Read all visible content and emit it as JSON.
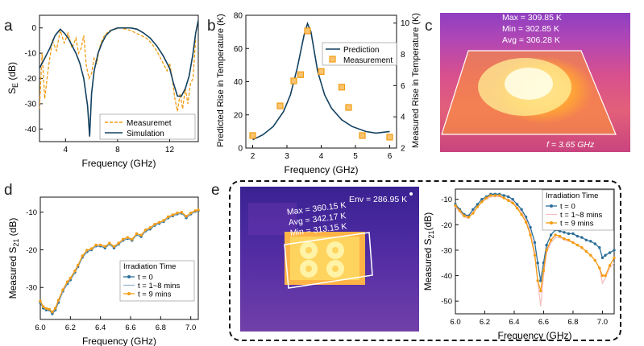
{
  "panels": {
    "a": {
      "letter": "a"
    },
    "b": {
      "letter": "b"
    },
    "c": {
      "letter": "c",
      "max": "Max = 309.85 K",
      "min": "Min = 302.85 K",
      "avg": "Avg = 306.28 K",
      "freq": "f = 3.65 GHz"
    },
    "d": {
      "letter": "d"
    },
    "e": {
      "letter": "e",
      "env": "Env = 286.95 K",
      "max": "Max = 360.15 K",
      "avg": "Avg = 342.17 K",
      "min": "Min = 313.15 K"
    }
  },
  "chart_data": [
    {
      "id": "a",
      "type": "line",
      "xlabel": "Frequency (GHz)",
      "ylabel": "S_E (dB)",
      "xlim": [
        2,
        14.2
      ],
      "ylim": [
        -45,
        5
      ],
      "xticks": [
        4,
        8,
        12
      ],
      "yticks": [
        0,
        -10,
        -20,
        -30,
        -40
      ],
      "legend": "bottom-right",
      "series": [
        {
          "name": "Measuremet",
          "color": "#f39c12",
          "style": "dashed",
          "x": [
            2.0,
            2.2,
            2.4,
            2.7,
            3.0,
            3.3,
            3.6,
            3.9,
            4.2,
            4.5,
            4.8,
            5.0,
            5.2,
            5.4,
            5.6,
            5.8,
            6.0,
            6.2,
            6.4,
            6.6,
            6.8,
            7.0,
            7.4,
            7.8,
            8.2,
            8.6,
            9.0,
            9.4,
            9.8,
            10.2,
            10.6,
            11.0,
            11.4,
            11.8,
            12.0,
            12.2,
            12.4,
            12.6,
            12.8,
            13.0,
            13.2,
            13.4,
            13.6,
            13.8,
            14.0
          ],
          "y": [
            -32,
            -10,
            -28,
            -15,
            -5,
            -9,
            -1,
            -6,
            -2,
            -8,
            -4,
            -10,
            -8,
            -3,
            -15,
            -20,
            -18,
            -12,
            -14,
            -8,
            -5,
            -3,
            -1,
            -0.5,
            0,
            -0.5,
            -1,
            -2,
            -3,
            -4,
            -6,
            -9,
            -13,
            -17,
            -14,
            -20,
            -28,
            -33,
            -26,
            -32,
            -24,
            -30,
            -22,
            -20,
            -4
          ]
        },
        {
          "name": "Simulation",
          "color": "#12405f",
          "style": "solid",
          "x": [
            2.0,
            2.4,
            2.8,
            3.2,
            3.6,
            3.9,
            4.2,
            4.5,
            4.8,
            5.1,
            5.4,
            5.7,
            5.85,
            6.0,
            6.2,
            6.5,
            6.8,
            7.1,
            7.5,
            8.0,
            8.5,
            9.0,
            9.5,
            10.0,
            10.5,
            11.0,
            11.5,
            12.0,
            12.3,
            12.6,
            12.9,
            13.2,
            13.5,
            13.8,
            14.0,
            14.2
          ],
          "y": [
            -16,
            -12,
            -8,
            -3,
            -0.5,
            -2,
            -4,
            -7,
            -10,
            -14,
            -20,
            -31,
            -43,
            -26,
            -17,
            -10,
            -6,
            -3,
            -1,
            0,
            0,
            0,
            -0.5,
            -2,
            -4,
            -7,
            -11,
            -16,
            -22,
            -27,
            -27,
            -24,
            -19,
            -10,
            -2,
            3
          ]
        }
      ]
    },
    {
      "id": "b",
      "type": "line",
      "xlabel": "Frequency (GHz)",
      "ylabel": "Predicted Rise in Temperature (K)",
      "y2label": "Measured Rise in Temperature (K)",
      "xlim": [
        1.8,
        6.2
      ],
      "ylim": [
        0,
        80
      ],
      "y2lim": [
        2,
        10.5
      ],
      "xticks": [
        2,
        3,
        4,
        5,
        6
      ],
      "yticks": [
        0,
        20,
        40,
        60,
        80
      ],
      "y2ticks": [
        2,
        4,
        6,
        8,
        10
      ],
      "legend": "top-right",
      "series": [
        {
          "name": "Prediction",
          "color": "#12405f",
          "axis": "left",
          "x": [
            2.0,
            2.3,
            2.6,
            2.9,
            3.1,
            3.3,
            3.5,
            3.6,
            3.7,
            3.9,
            4.1,
            4.3,
            4.6,
            4.9,
            5.3,
            5.6,
            6.0
          ],
          "y": [
            5,
            8,
            13,
            22,
            32,
            48,
            68,
            75,
            70,
            46,
            32,
            24,
            17,
            13,
            10,
            9,
            10
          ]
        },
        {
          "name": "Measurement",
          "color": "#f39c12",
          "axis": "right",
          "marker": "square",
          "x": [
            2.0,
            2.8,
            3.2,
            3.4,
            3.6,
            4.0,
            4.6,
            4.8,
            5.2,
            6.0
          ],
          "y": [
            2.8,
            4.7,
            6.3,
            6.7,
            9.5,
            6.9,
            5.9,
            4.6,
            2.8,
            2.7
          ]
        }
      ]
    },
    {
      "id": "d",
      "type": "line",
      "xlabel": "Frequency (GHz)",
      "ylabel": "Measured S21 (dB)",
      "xlim": [
        6.0,
        7.05
      ],
      "ylim": [
        -38.5,
        -6
      ],
      "xticks": [
        6.0,
        6.2,
        6.4,
        6.6,
        6.8,
        7.0
      ],
      "yticks": [
        -10,
        -20,
        -30
      ],
      "legend": "bottom-right",
      "legend_title": "Irradiation Time",
      "x": [
        6.0,
        6.02,
        6.04,
        6.06,
        6.08,
        6.1,
        6.12,
        6.15,
        6.18,
        6.2,
        6.23,
        6.25,
        6.28,
        6.31,
        6.34,
        6.37,
        6.4,
        6.43,
        6.46,
        6.49,
        6.52,
        6.55,
        6.58,
        6.61,
        6.64,
        6.67,
        6.7,
        6.73,
        6.76,
        6.79,
        6.82,
        6.85,
        6.88,
        6.91,
        6.94,
        6.97,
        7.0,
        7.03,
        7.05
      ],
      "series": [
        {
          "name": "t = 0",
          "color": "#2d6e99",
          "marker": "dot",
          "y": [
            -34,
            -35.5,
            -36,
            -36,
            -37,
            -36,
            -34,
            -31,
            -29,
            -28,
            -26,
            -24.5,
            -22,
            -20.5,
            -20,
            -19,
            -19,
            -19.5,
            -18.5,
            -19.5,
            -18.5,
            -17.5,
            -17,
            -17.5,
            -16,
            -16.5,
            -15,
            -14.5,
            -13.5,
            -13,
            -12.5,
            -11.5,
            -11,
            -10.5,
            -10.3,
            -11.5,
            -10.5,
            -9.8,
            -9.6
          ]
        },
        {
          "name": "t = 1~8 mins",
          "color": "#9ab7cc",
          "y": [
            -33.8,
            -35.3,
            -35.8,
            -35.9,
            -36.7,
            -35.7,
            -33.6,
            -30.8,
            -28.7,
            -27.7,
            -25.8,
            -24.3,
            -21.8,
            -20.3,
            -19.9,
            -18.9,
            -18.9,
            -19.3,
            -18.4,
            -19.3,
            -18.4,
            -17.4,
            -16.9,
            -17.4,
            -15.9,
            -16.3,
            -14.9,
            -14.3,
            -13.4,
            -12.9,
            -12.4,
            -11.4,
            -10.9,
            -10.4,
            -10.2,
            -11.3,
            -10.4,
            -9.7,
            -9.5
          ]
        },
        {
          "name": "t = 9 mins",
          "color": "#f39c12",
          "marker": "dot",
          "y": [
            -33.6,
            -35.1,
            -35.6,
            -35.8,
            -36.5,
            -35.5,
            -33.4,
            -30.6,
            -28.5,
            -27.5,
            -25.6,
            -24.1,
            -21.6,
            -20.1,
            -19.7,
            -18.7,
            -18.7,
            -19.1,
            -18.2,
            -19.1,
            -18.2,
            -17.2,
            -16.7,
            -17.2,
            -15.7,
            -16.1,
            -14.7,
            -14.1,
            -13.2,
            -12.7,
            -12.2,
            -11.2,
            -10.7,
            -10.2,
            -10.0,
            -11.1,
            -10.2,
            -9.6,
            -9.4
          ]
        }
      ]
    },
    {
      "id": "e",
      "type": "line",
      "xlabel": "Frequency (GHz)",
      "ylabel": "Measured S21(dB)",
      "xlim": [
        6.0,
        7.08
      ],
      "ylim": [
        -55,
        -6
      ],
      "xticks": [
        6.0,
        6.2,
        6.4,
        6.6,
        6.8,
        7.0
      ],
      "yticks": [
        -10,
        -20,
        -30,
        -40,
        -50
      ],
      "legend": "top-right",
      "legend_title": "Irradiation Time",
      "x": [
        6.0,
        6.03,
        6.06,
        6.09,
        6.12,
        6.15,
        6.18,
        6.21,
        6.24,
        6.27,
        6.3,
        6.33,
        6.36,
        6.39,
        6.42,
        6.45,
        6.48,
        6.51,
        6.54,
        6.56,
        6.58,
        6.6,
        6.62,
        6.65,
        6.68,
        6.71,
        6.74,
        6.77,
        6.8,
        6.83,
        6.86,
        6.89,
        6.92,
        6.95,
        6.98,
        7.0,
        7.02,
        7.05,
        7.08
      ],
      "series": [
        {
          "name": "t = 0",
          "color": "#2d6e99",
          "marker": "dot",
          "y": [
            -12,
            -14,
            -16,
            -16.5,
            -14,
            -12,
            -10,
            -9,
            -8,
            -8,
            -8,
            -8.5,
            -9,
            -10,
            -12,
            -14,
            -17,
            -21,
            -27,
            -35,
            -42,
            -35,
            -28,
            -24,
            -22,
            -22.5,
            -23,
            -23.5,
            -23.5,
            -24.5,
            -25,
            -26,
            -26.5,
            -27.5,
            -29,
            -33,
            -32,
            -31,
            -30
          ]
        },
        {
          "name": "t = 1~8 mins",
          "color": "#f4bfc0",
          "y": [
            -13,
            -15,
            -17,
            -17.5,
            -15,
            -13,
            -11,
            -10,
            -9,
            -9,
            -9,
            -9.5,
            -10,
            -11,
            -13,
            -15,
            -18,
            -23,
            -31,
            -42,
            -52,
            -40,
            -31,
            -27,
            -25,
            -25,
            -26,
            -26.5,
            -27,
            -28,
            -29,
            -30.5,
            -32,
            -34,
            -37,
            -43,
            -41,
            -37,
            -35
          ]
        },
        {
          "name": "t = 9 mins",
          "color": "#f39c12",
          "marker": "dot",
          "y": [
            -12.5,
            -14.5,
            -16.5,
            -17,
            -15.5,
            -13,
            -11,
            -9.5,
            -8.5,
            -8.5,
            -8.5,
            -9.5,
            -10.5,
            -11.5,
            -13.5,
            -16,
            -19,
            -24,
            -32,
            -42,
            -46,
            -38,
            -30,
            -26,
            -24,
            -24.5,
            -25.5,
            -26,
            -27,
            -28,
            -29,
            -30.5,
            -32,
            -34,
            -37,
            -40,
            -40,
            -36,
            -33
          ]
        }
      ]
    }
  ]
}
